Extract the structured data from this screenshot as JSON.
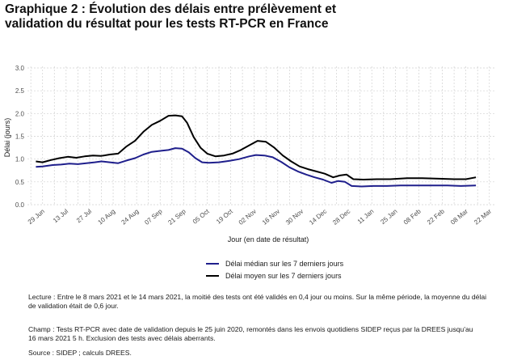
{
  "title_lines": [
    "Graphique 2 : Évolution des délais entre prélèvement et",
    "validation du résultat pour les tests RT-PCR en France"
  ],
  "notes": {
    "lecture": [
      "Lecture : Entre le 8 mars 2021 et le 14 mars 2021, la moitié des tests ont été validés en 0,4 jour ou moins. Sur la même période, la moyenne du délai",
      "de validation était de 0,6 jour."
    ],
    "champ": [
      "Champ : Tests RT-PCR avec date de validation depuis le 25 juin 2020, remontés dans les envois quotidiens SIDEP reçus par la DREES jusqu'au",
      "16 mars 2021 5 h. Exclusion des tests avec délais aberrants."
    ],
    "source": "Source : SIDEP ; calculs DREES."
  },
  "chart_data": {
    "type": "line",
    "xlabel": "Jour (en date de résultat)",
    "ylabel": "Délai (jours)",
    "ylim": [
      0,
      3.0
    ],
    "yticks": [
      "0.0",
      "0.5",
      "1.0",
      "1.5",
      "2.0",
      "2.5",
      "3.0"
    ],
    "xticks": [
      "29 Jun",
      "13 Jul",
      "27 Jul",
      "10 Aug",
      "24 Aug",
      "07 Sep",
      "21 Sep",
      "05 Oct",
      "19 Oct",
      "02 Nov",
      "16 Nov",
      "30 Nov",
      "14 Dec",
      "28 Dec",
      "11 Jan",
      "25 Jan",
      "08 Feb",
      "22 Feb",
      "08 Mar",
      "22 Mar"
    ],
    "grid": true,
    "legend_position": "bottom",
    "series": [
      {
        "name": "Délai médian sur les 7 derniers jours",
        "color": "#1f1f8c",
        "points": [
          [
            "2020-06-25",
            0.83
          ],
          [
            "2020-06-29",
            0.84
          ],
          [
            "2020-07-05",
            0.87
          ],
          [
            "2020-07-10",
            0.88
          ],
          [
            "2020-07-15",
            0.9
          ],
          [
            "2020-07-20",
            0.89
          ],
          [
            "2020-07-25",
            0.91
          ],
          [
            "2020-07-30",
            0.93
          ],
          [
            "2020-08-03",
            0.95
          ],
          [
            "2020-08-08",
            0.93
          ],
          [
            "2020-08-13",
            0.91
          ],
          [
            "2020-08-18",
            0.97
          ],
          [
            "2020-08-23",
            1.02
          ],
          [
            "2020-08-28",
            1.1
          ],
          [
            "2020-09-02",
            1.16
          ],
          [
            "2020-09-07",
            1.18
          ],
          [
            "2020-09-12",
            1.2
          ],
          [
            "2020-09-16",
            1.24
          ],
          [
            "2020-09-20",
            1.23
          ],
          [
            "2020-09-24",
            1.15
          ],
          [
            "2020-09-28",
            1.02
          ],
          [
            "2020-10-02",
            0.93
          ],
          [
            "2020-10-06",
            0.92
          ],
          [
            "2020-10-12",
            0.93
          ],
          [
            "2020-10-18",
            0.96
          ],
          [
            "2020-10-24",
            1.0
          ],
          [
            "2020-10-30",
            1.06
          ],
          [
            "2020-11-03",
            1.09
          ],
          [
            "2020-11-08",
            1.08
          ],
          [
            "2020-11-13",
            1.04
          ],
          [
            "2020-11-18",
            0.94
          ],
          [
            "2020-11-23",
            0.82
          ],
          [
            "2020-11-28",
            0.73
          ],
          [
            "2020-12-03",
            0.66
          ],
          [
            "2020-12-08",
            0.6
          ],
          [
            "2020-12-13",
            0.55
          ],
          [
            "2020-12-18",
            0.48
          ],
          [
            "2020-12-22",
            0.52
          ],
          [
            "2020-12-26",
            0.5
          ],
          [
            "2020-12-30",
            0.41
          ],
          [
            "2021-01-05",
            0.4
          ],
          [
            "2021-01-12",
            0.41
          ],
          [
            "2021-01-20",
            0.41
          ],
          [
            "2021-01-28",
            0.42
          ],
          [
            "2021-02-05",
            0.42
          ],
          [
            "2021-02-15",
            0.42
          ],
          [
            "2021-02-25",
            0.42
          ],
          [
            "2021-03-05",
            0.41
          ],
          [
            "2021-03-14",
            0.42
          ]
        ]
      },
      {
        "name": "Délai moyen sur les 7 derniers jours",
        "color": "#000000",
        "points": [
          [
            "2020-06-25",
            0.95
          ],
          [
            "2020-06-29",
            0.93
          ],
          [
            "2020-07-04",
            0.98
          ],
          [
            "2020-07-09",
            1.02
          ],
          [
            "2020-07-14",
            1.05
          ],
          [
            "2020-07-19",
            1.03
          ],
          [
            "2020-07-24",
            1.06
          ],
          [
            "2020-07-29",
            1.08
          ],
          [
            "2020-08-03",
            1.07
          ],
          [
            "2020-08-08",
            1.1
          ],
          [
            "2020-08-13",
            1.12
          ],
          [
            "2020-08-18",
            1.28
          ],
          [
            "2020-08-23",
            1.4
          ],
          [
            "2020-08-28",
            1.6
          ],
          [
            "2020-09-02",
            1.75
          ],
          [
            "2020-09-07",
            1.84
          ],
          [
            "2020-09-12",
            1.95
          ],
          [
            "2020-09-16",
            1.96
          ],
          [
            "2020-09-20",
            1.94
          ],
          [
            "2020-09-23",
            1.8
          ],
          [
            "2020-09-27",
            1.48
          ],
          [
            "2020-10-01",
            1.25
          ],
          [
            "2020-10-05",
            1.12
          ],
          [
            "2020-10-10",
            1.06
          ],
          [
            "2020-10-15",
            1.08
          ],
          [
            "2020-10-20",
            1.12
          ],
          [
            "2020-10-25",
            1.2
          ],
          [
            "2020-10-30",
            1.3
          ],
          [
            "2020-11-04",
            1.4
          ],
          [
            "2020-11-09",
            1.38
          ],
          [
            "2020-11-14",
            1.25
          ],
          [
            "2020-11-19",
            1.08
          ],
          [
            "2020-11-24",
            0.95
          ],
          [
            "2020-11-29",
            0.84
          ],
          [
            "2020-12-04",
            0.78
          ],
          [
            "2020-12-09",
            0.73
          ],
          [
            "2020-12-14",
            0.68
          ],
          [
            "2020-12-19",
            0.6
          ],
          [
            "2020-12-23",
            0.64
          ],
          [
            "2020-12-27",
            0.66
          ],
          [
            "2020-12-31",
            0.56
          ],
          [
            "2021-01-06",
            0.55
          ],
          [
            "2021-01-14",
            0.56
          ],
          [
            "2021-01-22",
            0.56
          ],
          [
            "2021-02-01",
            0.58
          ],
          [
            "2021-02-10",
            0.58
          ],
          [
            "2021-02-20",
            0.57
          ],
          [
            "2021-03-01",
            0.56
          ],
          [
            "2021-03-08",
            0.56
          ],
          [
            "2021-03-14",
            0.6
          ]
        ]
      }
    ]
  }
}
